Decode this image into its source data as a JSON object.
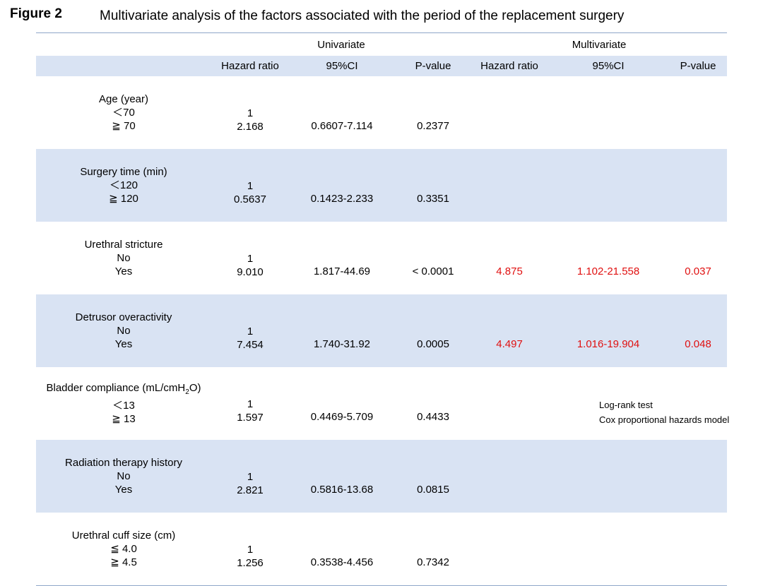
{
  "figure_label": "Figure 2",
  "title": "Multivariate analysis of the factors associated with the period of the replacement surgery",
  "groups": {
    "univariate": "Univariate",
    "multivariate": "Multivariate"
  },
  "columns": [
    "Hazard ratio",
    "95%CI",
    "P-value",
    "Hazard ratio",
    "95%CI",
    "P-value"
  ],
  "rows": [
    {
      "factor": "Age (year)",
      "levels": [
        "＜70",
        "≧ 70"
      ],
      "uni_hr": [
        "1",
        "2.168"
      ],
      "uni_ci": "0.6607-7.114",
      "uni_p": "0.2377",
      "multi_hr": "",
      "multi_ci": "",
      "multi_p": ""
    },
    {
      "factor": "Surgery time (min)",
      "levels": [
        "＜120",
        "≧ 120"
      ],
      "uni_hr": [
        "1",
        "0.5637"
      ],
      "uni_ci": "0.1423-2.233",
      "uni_p": "0.3351",
      "multi_hr": "",
      "multi_ci": "",
      "multi_p": ""
    },
    {
      "factor": "Urethral stricture",
      "levels": [
        "No",
        "Yes"
      ],
      "uni_hr": [
        "1",
        "9.010"
      ],
      "uni_ci": "1.817-44.69",
      "uni_p": "< 0.0001",
      "multi_hr": "4.875",
      "multi_ci": "1.102-21.558",
      "multi_p": "0.037"
    },
    {
      "factor": "Detrusor overactivity",
      "levels": [
        "No",
        "Yes"
      ],
      "uni_hr": [
        "1",
        "7.454"
      ],
      "uni_ci": "1.740-31.92",
      "uni_p": "0.0005",
      "multi_hr": "4.497",
      "multi_ci": "1.016-19.904",
      "multi_p": "0.048"
    },
    {
      "factor_pre": "Bladder compliance (mL/cmH",
      "factor_sub": "2",
      "factor_post": "O)",
      "levels": [
        "＜13",
        "≧ 13"
      ],
      "uni_hr": [
        "1",
        "1.597"
      ],
      "uni_ci": "0.4469-5.709",
      "uni_p": "0.4433",
      "multi_hr": "",
      "multi_ci": "",
      "multi_p": ""
    },
    {
      "factor": "Radiation therapy history",
      "levels": [
        "No",
        "Yes"
      ],
      "uni_hr": [
        "1",
        "2.821"
      ],
      "uni_ci": "0.5816-13.68",
      "uni_p": "0.0815",
      "multi_hr": "",
      "multi_ci": "",
      "multi_p": ""
    },
    {
      "factor": "Urethral cuff size (cm)",
      "levels": [
        "≦ 4.0",
        "≧ 4.5"
      ],
      "uni_hr": [
        "1",
        "1.256"
      ],
      "uni_ci": "0.3538-4.456",
      "uni_p": "0.7342",
      "multi_hr": "",
      "multi_ci": "",
      "multi_p": ""
    }
  ],
  "notes": [
    "Log-rank test",
    "Cox proportional hazards model"
  ],
  "colors": {
    "highlight": "#e01010",
    "band": "#d9e3f3",
    "rule": "#8ea6c8"
  }
}
